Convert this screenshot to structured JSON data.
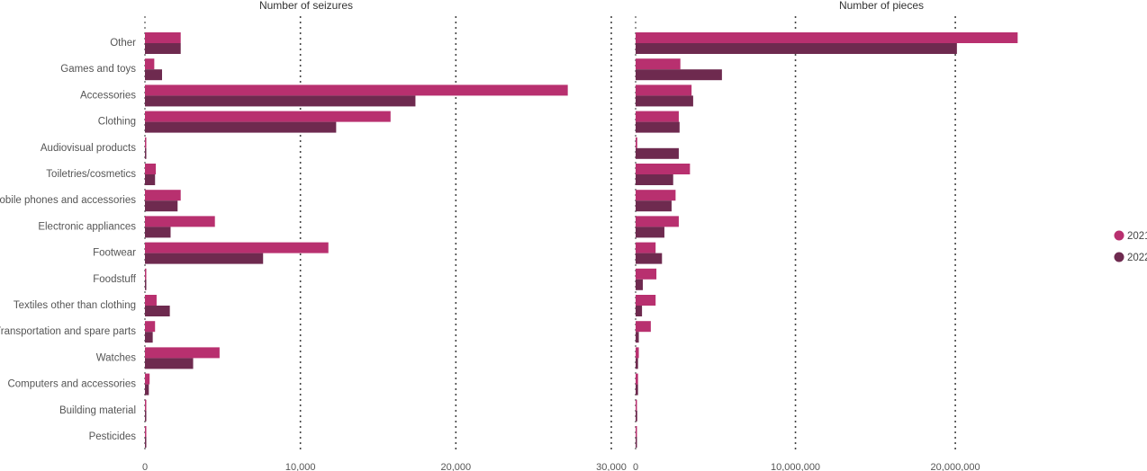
{
  "chart_data": [
    {
      "type": "bar",
      "orientation": "horizontal",
      "title": "Number of seizures",
      "categories": [
        "Other",
        "Games and toys",
        "Accessories",
        "Clothing",
        "Audiovisual products",
        "Toiletries/cosmetics",
        "Mobile phones and accessories",
        "Electronic appliances",
        "Footwear",
        "Foodstuff",
        "Textiles other than clothing",
        "Transportation and spare parts",
        "Watches",
        "Computers and accessories",
        "Building material",
        "Pesticides"
      ],
      "xlim": [
        0,
        30000
      ],
      "ticks": [
        0,
        10000,
        20000,
        30000
      ],
      "tick_labels": [
        "0",
        "10,000",
        "20,000",
        "30,000"
      ],
      "series": [
        {
          "name": "2021",
          "values": [
            2300,
            600,
            27200,
            15800,
            80,
            700,
            2300,
            4500,
            11800,
            60,
            750,
            650,
            4800,
            300,
            50,
            40
          ]
        },
        {
          "name": "2022",
          "values": [
            2300,
            1100,
            17400,
            12300,
            60,
            650,
            2100,
            1650,
            7600,
            50,
            1600,
            500,
            3100,
            250,
            40,
            30
          ]
        }
      ],
      "grid": true
    },
    {
      "type": "bar",
      "orientation": "horizontal",
      "title": "Number of pieces",
      "categories": [
        "Other",
        "Games and toys",
        "Accessories",
        "Clothing",
        "Audiovisual products",
        "Toiletries/cosmetics",
        "Mobile phones and accessories",
        "Electronic appliances",
        "Footwear",
        "Foodstuff",
        "Textiles other than clothing",
        "Transportation and spare parts",
        "Watches",
        "Computers and accessories",
        "Building material",
        "Pesticides"
      ],
      "xlim": [
        0,
        28500000
      ],
      "ticks": [
        0,
        10000000,
        20000000
      ],
      "tick_labels": [
        "0",
        "10,000,000",
        "20,000,000"
      ],
      "series": [
        {
          "name": "2021",
          "values": [
            23900000,
            2800000,
            3500000,
            2700000,
            100000,
            3400000,
            2500000,
            2700000,
            1250000,
            1300000,
            1250000,
            950000,
            200000,
            150000,
            50000,
            40000
          ]
        },
        {
          "name": "2022",
          "values": [
            20100000,
            5400000,
            3600000,
            2750000,
            2700000,
            2350000,
            2250000,
            1800000,
            1650000,
            450000,
            400000,
            200000,
            150000,
            150000,
            100000,
            40000
          ]
        }
      ],
      "grid": true
    }
  ],
  "legend": {
    "position": "right",
    "items": [
      {
        "label": "2021",
        "color": "#b8306f"
      },
      {
        "label": "2022",
        "color": "#6e2a4f"
      }
    ]
  }
}
